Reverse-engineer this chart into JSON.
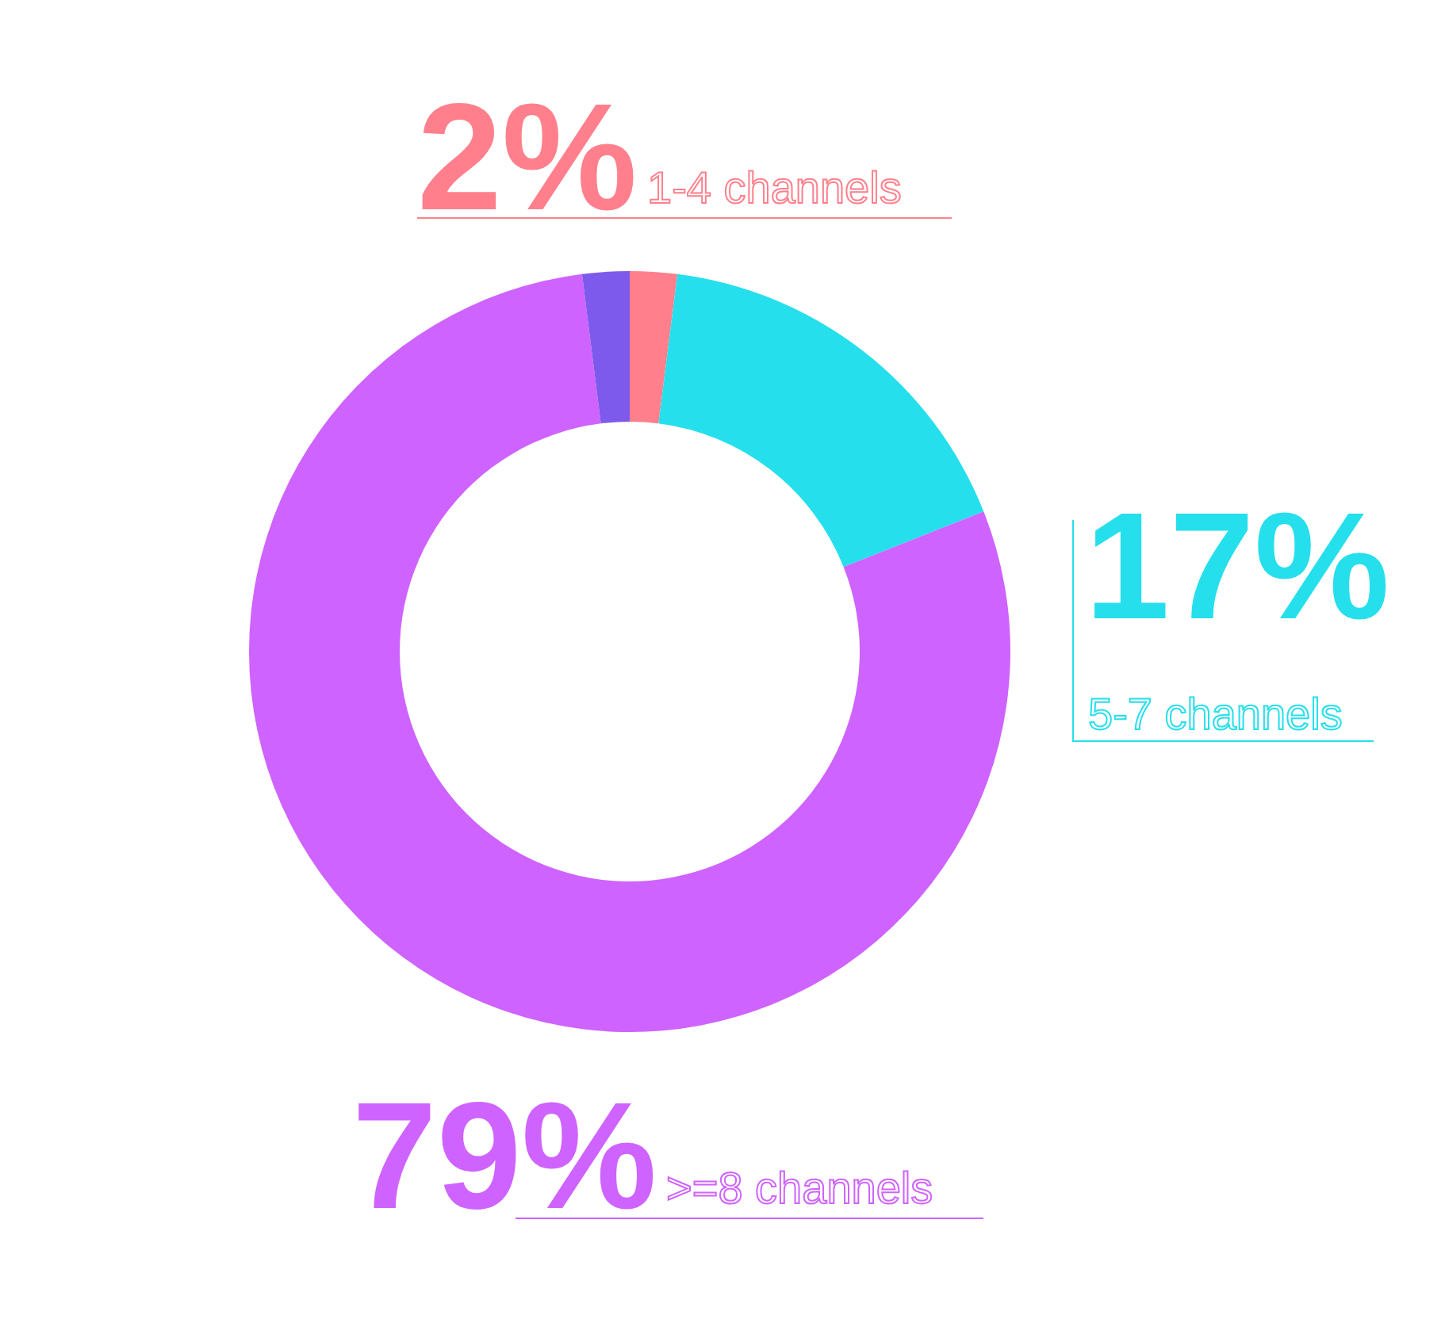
{
  "chart_data": {
    "type": "donut",
    "categories": [
      "1-4 channels",
      "5-7 channels",
      ">=8 channels",
      null
    ],
    "values": [
      2,
      17,
      79,
      2
    ],
    "colors": [
      "#ff808c",
      "#25dfec",
      "#cf63ff",
      "#7d5aeb"
    ],
    "value_labels": [
      "2%",
      "17%",
      "79%",
      null
    ]
  }
}
